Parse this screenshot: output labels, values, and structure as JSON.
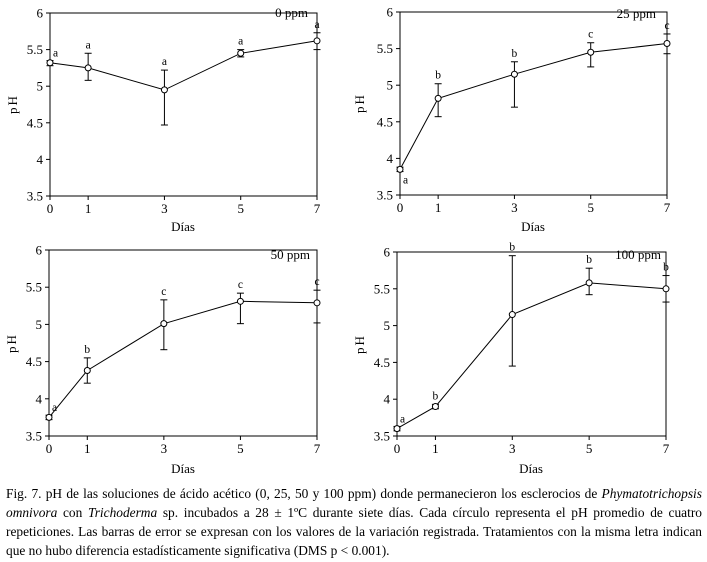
{
  "chart_data": [
    {
      "type": "line",
      "title": "0 ppm",
      "xlabel": "Días",
      "ylabel": "pH",
      "x": [
        0,
        1,
        3,
        5,
        7
      ],
      "x_ticks": [
        "0",
        "1",
        "3",
        "5",
        "7"
      ],
      "y_ticks": [
        "3.5",
        "4",
        "4.5",
        "5",
        "5.5",
        "6"
      ],
      "ylim": [
        3.5,
        6
      ],
      "values": [
        5.32,
        5.25,
        4.95,
        5.45,
        5.62
      ],
      "err_high": [
        5.35,
        5.45,
        5.22,
        5.5,
        5.73
      ],
      "err_low": [
        5.28,
        5.08,
        4.47,
        5.4,
        5.5
      ],
      "letters": [
        "a",
        "a",
        "a",
        "a",
        "a"
      ]
    },
    {
      "type": "line",
      "title": "25 ppm",
      "xlabel": "Días",
      "ylabel": "pH",
      "x": [
        0,
        1,
        3,
        5,
        7
      ],
      "x_ticks": [
        "0",
        "1",
        "3",
        "5",
        "7"
      ],
      "y_ticks": [
        "3.5",
        "4",
        "4.5",
        "5",
        "5.5",
        "6"
      ],
      "ylim": [
        3.5,
        6
      ],
      "values": [
        3.85,
        4.82,
        5.15,
        5.45,
        5.57
      ],
      "err_high": [
        3.88,
        5.02,
        5.32,
        5.58,
        5.7
      ],
      "err_low": [
        3.82,
        4.57,
        4.7,
        5.25,
        5.43
      ],
      "letters": [
        "a",
        "b",
        "b",
        "c",
        "c"
      ]
    },
    {
      "type": "line",
      "title": "50 ppm",
      "xlabel": "Días",
      "ylabel": "pH",
      "x": [
        0,
        1,
        3,
        5,
        7
      ],
      "x_ticks": [
        "0",
        "1",
        "3",
        "5",
        "7"
      ],
      "y_ticks": [
        "3.5",
        "4",
        "4.5",
        "5",
        "5.5",
        "6"
      ],
      "ylim": [
        3.5,
        6
      ],
      "values": [
        3.75,
        4.38,
        5.01,
        5.31,
        5.29
      ],
      "err_high": [
        3.78,
        4.55,
        5.33,
        5.42,
        5.46
      ],
      "err_low": [
        3.72,
        4.21,
        4.66,
        5.01,
        5.02
      ],
      "letters": [
        "a",
        "b",
        "c",
        "c",
        "c"
      ]
    },
    {
      "type": "line",
      "title": "100 ppm",
      "xlabel": "Días",
      "ylabel": "pH",
      "x": [
        0,
        1,
        3,
        5,
        7
      ],
      "x_ticks": [
        "0",
        "1",
        "3",
        "5",
        "7"
      ],
      "y_ticks": [
        "3.5",
        "4",
        "4.5",
        "5",
        "5.5",
        "6"
      ],
      "ylim": [
        3.5,
        6
      ],
      "values": [
        3.6,
        3.9,
        5.15,
        5.58,
        5.5
      ],
      "err_high": [
        3.63,
        3.93,
        5.95,
        5.78,
        5.68
      ],
      "err_low": [
        3.57,
        3.87,
        4.45,
        5.42,
        5.32
      ],
      "letters": [
        "a",
        "b",
        "b",
        "b",
        "b"
      ]
    }
  ],
  "caption": {
    "fig_label": "Fig. 7.",
    "part1": "pH de las soluciones de ácido acético (0, 25, 50 y 100 ppm) donde permanecieron los esclerocios de",
    "species1": "Phymatotrichopsis omnivora",
    "part2": "con",
    "species2": "Trichoderma",
    "part3": "sp. incubados a 28 ± 1ºC durante siete días. Cada círculo representa el pH promedio de cuatro repeticiones. Las barras de error se expresan con los valores de la variación registrada. Tratamientos con la misma letra indican que no hubo diferencia estadísticamente significativa (DMS  p < 0.001)."
  }
}
